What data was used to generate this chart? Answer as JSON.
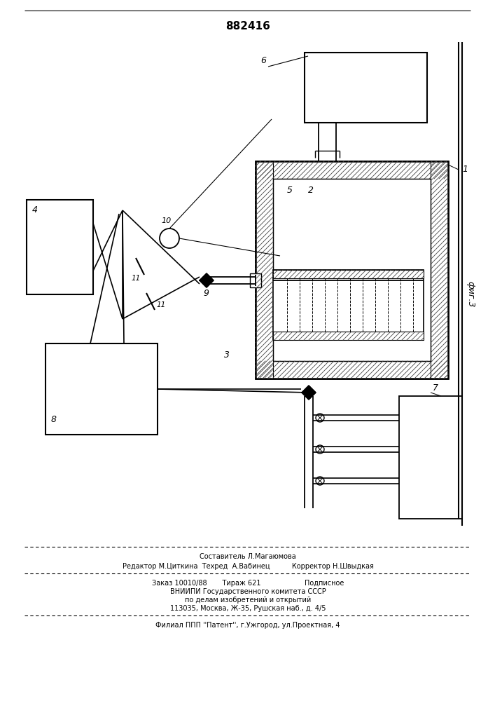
{
  "patent_number": "882416",
  "fig_label": "фиг.3",
  "footer_lines": [
    "Составитель Л.Магаюмова",
    "Редактор М.Циткина  Техред  А.Вабинец          Корректор Н.Швыдкая",
    "Заказ 10010/88       Тираж 621                    Подписное",
    "ВНИИПИ Государственного комитета СССР",
    "по делам изобретений и открытий",
    "113035, Москва, Ж-35, Рушская наб., д. 4/5",
    "Филиал ППП ''Патент'', г.Ужгород, ул.Проектная, 4"
  ],
  "bg_color": "#ffffff",
  "line_color": "#000000"
}
